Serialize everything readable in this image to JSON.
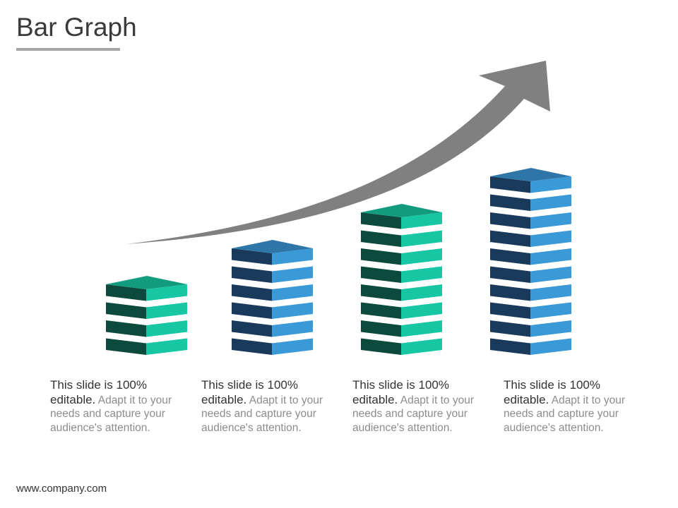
{
  "title": "Bar Graph",
  "chart_data": {
    "type": "bar",
    "categories": [
      "",
      "",
      "",
      ""
    ],
    "values": [
      4,
      6,
      8,
      10
    ],
    "unit": "stacked blocks",
    "trend_arrow": "up",
    "grid": false,
    "colors": {
      "green_front": "#0b4a3c",
      "green_side": "#17c7a4",
      "green_top": "#139b7e",
      "blue_front": "#1a3a5c",
      "blue_side": "#3a9ad8",
      "blue_top": "#2e76a8",
      "arrow": "#808080"
    },
    "bar_color_scheme": [
      "green",
      "blue",
      "green",
      "blue"
    ]
  },
  "descriptions": [
    {
      "lead": "This slide is 100% editable.",
      "body": " Adapt it to your needs and capture your audience's attention."
    },
    {
      "lead": "This slide is 100% editable.",
      "body": " Adapt it to your needs and capture your audience's attention."
    },
    {
      "lead": "This slide is 100% editable.",
      "body": " Adapt it to your needs and capture your audience's attention."
    },
    {
      "lead": "This slide is 100% editable.",
      "body": " Adapt it to your needs and capture your audience's attention."
    }
  ],
  "footer": "www.company.com"
}
